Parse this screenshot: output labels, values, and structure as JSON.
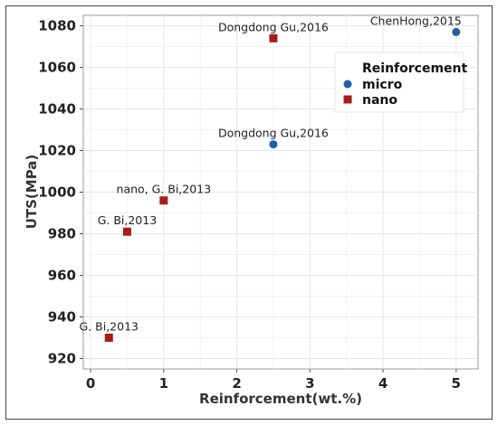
{
  "chart_data": {
    "type": "scatter",
    "title": "",
    "xlabel": "Reinforcement(wt.%)",
    "ylabel": "UTS(MPa)",
    "xlim": [
      -0.1,
      5.3
    ],
    "ylim": [
      915,
      1085
    ],
    "x_ticks": [
      0,
      1,
      2,
      3,
      4,
      5
    ],
    "y_ticks": [
      920,
      940,
      960,
      980,
      1000,
      1020,
      1040,
      1060,
      1080
    ],
    "grid": true,
    "legend": {
      "title": "Reinforcement",
      "placement": "top-right"
    },
    "series": [
      {
        "name": "micro",
        "color": "#1f5fa8",
        "marker": "circle",
        "points": [
          {
            "x": 2.5,
            "y": 1023,
            "label": "Dongdong Gu,2016"
          },
          {
            "x": 5.0,
            "y": 1077,
            "label": "ChenHong,2015"
          }
        ]
      },
      {
        "name": "nano",
        "color": "#a81c1c",
        "marker": "square",
        "points": [
          {
            "x": 2.5,
            "y": 1074,
            "label": "Dongdong Gu,2016"
          },
          {
            "x": 1.0,
            "y": 996,
            "label": "nano, G. Bi,2013"
          },
          {
            "x": 0.5,
            "y": 981,
            "label": "G. Bi,2013"
          },
          {
            "x": 0.25,
            "y": 930,
            "label": "G. Bi,2013"
          }
        ]
      }
    ]
  }
}
